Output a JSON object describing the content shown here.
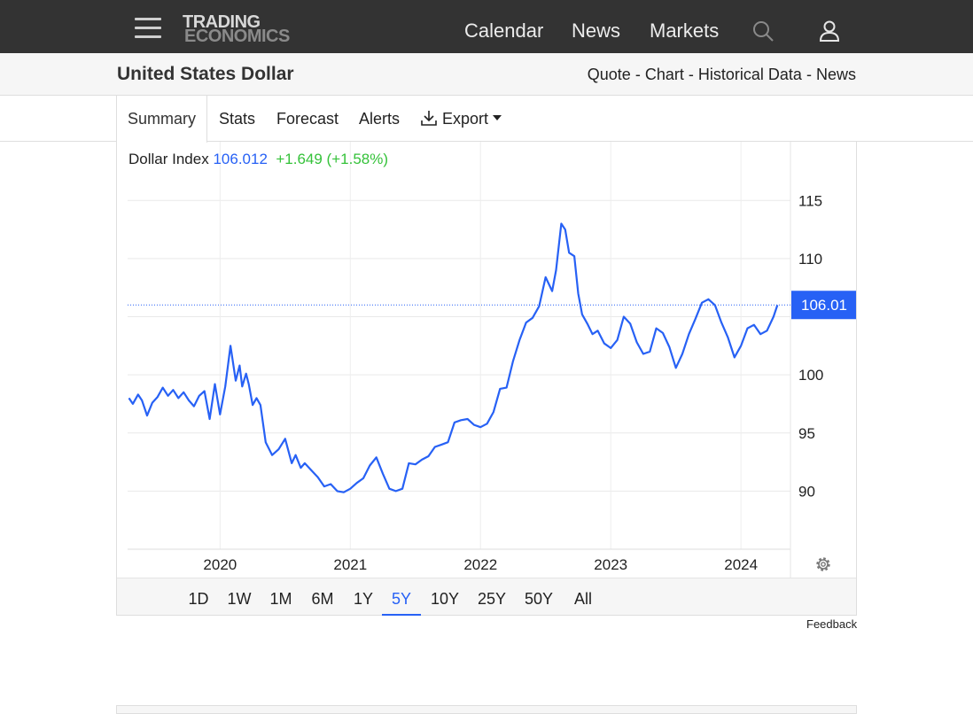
{
  "nav": {
    "logo_line1": "TRADING",
    "logo_line2": "ECONOMICS",
    "links": [
      "Calendar",
      "News",
      "Markets"
    ],
    "icons": [
      "menu-icon",
      "search-icon",
      "user-icon"
    ]
  },
  "titlebar": {
    "title": "United States Dollar",
    "links": [
      "Quote",
      "Chart",
      "Historical Data",
      "News"
    ],
    "separator": "-"
  },
  "tabs": {
    "items": [
      "Summary",
      "Stats",
      "Forecast",
      "Alerts"
    ],
    "export_label": "Export",
    "active": "Summary"
  },
  "quote": {
    "name": "Dollar Index",
    "value": "106.012",
    "change": "+1.649 (+1.58%)",
    "last_label": "106.01"
  },
  "colors": {
    "line": "#2761f5",
    "positive": "#35c23a",
    "nav_bg": "#333333"
  },
  "ranges": {
    "items": [
      "1D",
      "1W",
      "1M",
      "6M",
      "1Y",
      "5Y",
      "10Y",
      "25Y",
      "50Y",
      "All"
    ],
    "active": "5Y"
  },
  "feedback_label": "Feedback",
  "chart_data": {
    "type": "line",
    "title": "",
    "series": [
      {
        "name": "Dollar Index",
        "x": [
          2019.3,
          2019.33,
          2019.37,
          2019.4,
          2019.44,
          2019.48,
          2019.52,
          2019.56,
          2019.6,
          2019.64,
          2019.68,
          2019.72,
          2019.76,
          2019.8,
          2019.84,
          2019.88,
          2019.92,
          2019.96,
          2020.0,
          2020.04,
          2020.08,
          2020.12,
          2020.15,
          2020.17,
          2020.2,
          2020.22,
          2020.25,
          2020.28,
          2020.31,
          2020.35,
          2020.4,
          2020.45,
          2020.5,
          2020.55,
          2020.58,
          2020.62,
          2020.65,
          2020.7,
          2020.75,
          2020.8,
          2020.85,
          2020.9,
          2020.95,
          2021.0,
          2021.05,
          2021.1,
          2021.15,
          2021.2,
          2021.25,
          2021.3,
          2021.35,
          2021.4,
          2021.45,
          2021.5,
          2021.55,
          2021.6,
          2021.65,
          2021.7,
          2021.75,
          2021.8,
          2021.85,
          2021.9,
          2021.95,
          2022.0,
          2022.05,
          2022.1,
          2022.15,
          2022.2,
          2022.25,
          2022.3,
          2022.35,
          2022.4,
          2022.45,
          2022.5,
          2022.55,
          2022.58,
          2022.62,
          2022.65,
          2022.68,
          2022.72,
          2022.75,
          2022.78,
          2022.82,
          2022.86,
          2022.9,
          2022.95,
          2023.0,
          2023.05,
          2023.1,
          2023.15,
          2023.2,
          2023.25,
          2023.3,
          2023.35,
          2023.4,
          2023.45,
          2023.5,
          2023.55,
          2023.6,
          2023.65,
          2023.7,
          2023.75,
          2023.8,
          2023.85,
          2023.9,
          2023.95,
          2024.0,
          2024.05,
          2024.1,
          2024.15,
          2024.2,
          2024.25,
          2024.28
        ],
        "values": [
          98.0,
          97.5,
          98.3,
          97.8,
          96.5,
          97.6,
          98.1,
          98.9,
          98.2,
          98.7,
          98.0,
          98.5,
          97.8,
          97.3,
          98.2,
          98.6,
          96.2,
          99.2,
          96.6,
          99.0,
          102.5,
          99.5,
          100.8,
          99.0,
          100.1,
          99.2,
          97.4,
          98.0,
          97.4,
          94.2,
          93.1,
          93.6,
          94.5,
          92.4,
          93.1,
          92.0,
          92.4,
          91.8,
          91.2,
          90.4,
          90.6,
          90.0,
          89.9,
          90.2,
          90.7,
          91.1,
          92.2,
          92.9,
          91.5,
          90.2,
          90.0,
          90.2,
          92.4,
          92.3,
          92.7,
          93.0,
          93.8,
          94.0,
          94.2,
          95.9,
          96.1,
          96.2,
          95.7,
          95.5,
          95.8,
          96.8,
          98.8,
          98.9,
          101.2,
          103.0,
          104.5,
          104.9,
          105.9,
          108.4,
          107.2,
          109.0,
          113.0,
          112.5,
          110.5,
          110.2,
          107.0,
          105.2,
          104.4,
          103.5,
          103.8,
          102.7,
          102.3,
          103.0,
          105.0,
          104.4,
          102.8,
          101.8,
          102.0,
          104.0,
          103.6,
          102.4,
          100.6,
          101.8,
          103.5,
          104.8,
          106.2,
          106.5,
          106.0,
          104.5,
          103.2,
          101.5,
          102.5,
          104.0,
          104.3,
          103.5,
          103.8,
          105.0,
          106.0
        ],
        "last": 106.01
      }
    ],
    "xlabel": "",
    "ylabel": "",
    "x_ticks": [
      "2020",
      "2021",
      "2022",
      "2023",
      "2024"
    ],
    "x_tick_values": [
      2020.0,
      2021.0,
      2022.0,
      2023.0,
      2024.0
    ],
    "y_ticks": [
      90,
      95,
      100,
      110,
      115
    ],
    "ylim": [
      85,
      117
    ],
    "xlim": [
      2019.29,
      2024.38
    ],
    "grid": true,
    "y_axis_side": "right"
  }
}
